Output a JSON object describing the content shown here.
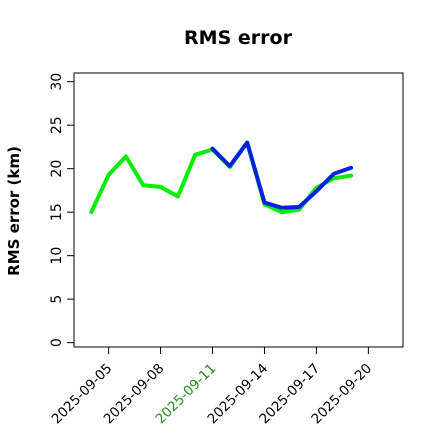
{
  "chart_data": {
    "type": "line",
    "title": "RMS error",
    "xlabel": "",
    "ylabel": "RMS error (km)",
    "xlim": [
      "2025-09-03",
      "2025-09-22"
    ],
    "ylim": [
      -0.5,
      31
    ],
    "yticks": [
      0,
      5,
      10,
      15,
      20,
      25,
      30
    ],
    "xticks": [
      "2025-09-05",
      "2025-09-08",
      "2025-09-11",
      "2025-09-14",
      "2025-09-17",
      "2025-09-20"
    ],
    "highlighted_xtick": "2025-09-11",
    "highlight_color": "#228B22",
    "grid": false,
    "series": [
      {
        "color": "#00EE00",
        "x": [
          "2025-09-04",
          "2025-09-05",
          "2025-09-06",
          "2025-09-07",
          "2025-09-08",
          "2025-09-09",
          "2025-09-10",
          "2025-09-11",
          "2025-09-12",
          "2025-09-13",
          "2025-09-14",
          "2025-09-15",
          "2025-09-16",
          "2025-09-17",
          "2025-09-18",
          "2025-09-19"
        ],
        "y": [
          15.0,
          19.3,
          21.4,
          18.1,
          17.9,
          16.8,
          21.6,
          22.2,
          20.2,
          23.0,
          15.9,
          15.0,
          15.3,
          17.8,
          18.9,
          19.2
        ]
      },
      {
        "color": "#0022DD",
        "x": [
          "2025-09-11",
          "2025-09-12",
          "2025-09-13",
          "2025-09-14",
          "2025-09-15",
          "2025-09-16",
          "2025-09-17",
          "2025-09-18",
          "2025-09-19"
        ],
        "y": [
          22.3,
          20.3,
          23.0,
          16.1,
          15.5,
          15.6,
          17.4,
          19.4,
          20.1
        ]
      }
    ]
  }
}
